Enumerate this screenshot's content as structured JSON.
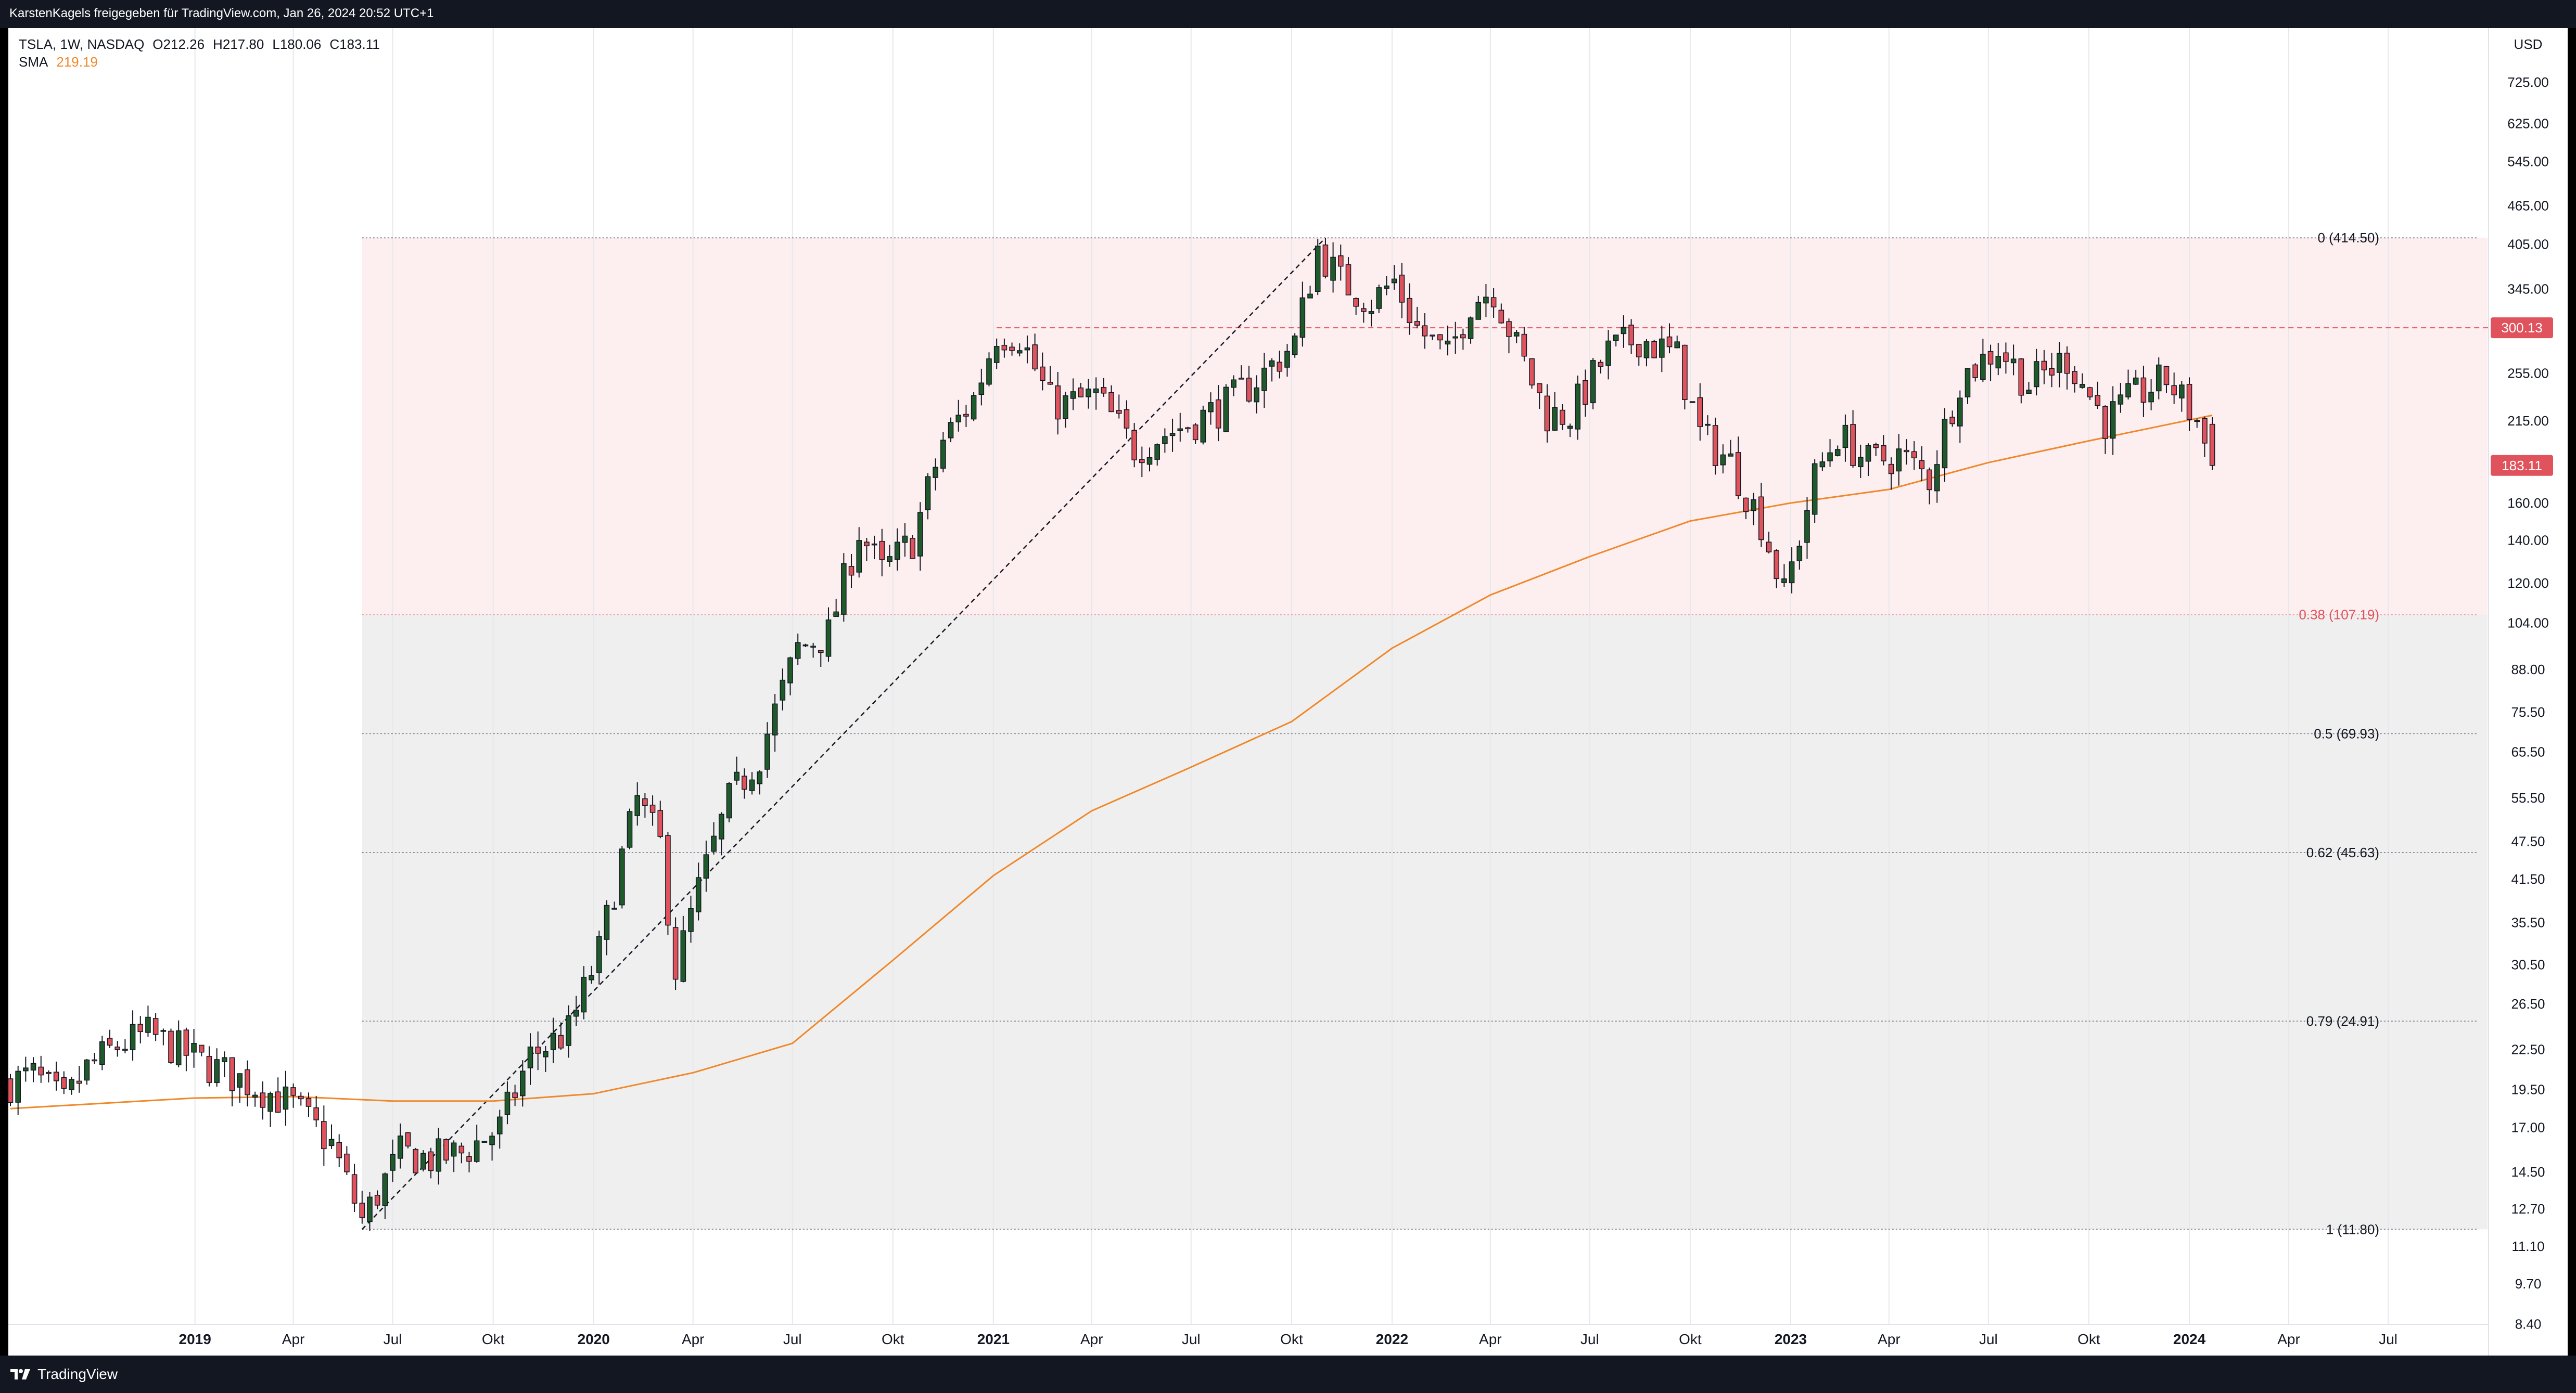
{
  "attribution": "KarstenKagels freigegeben für TradingView.com, Jan 26, 2024 20:52 UTC+1",
  "legend": {
    "symbol": "TSLA, 1W, NASDAQ",
    "open": "O212.26",
    "high": "H217.80",
    "low": "L180.06",
    "close": "C183.11",
    "indicator": "SMA",
    "indicator_value": "219.19"
  },
  "brand": "TradingView",
  "colors": {
    "up": "#1e5a2a",
    "down": "#e0525c",
    "sma": "#f0882a",
    "fib_upper_zone": "#fdeef0",
    "fib_lower_zone": "#efefef",
    "dashed_level": "#e0525c"
  },
  "chart_data": {
    "type": "candlestick",
    "symbol": "TSLA",
    "interval": "1W",
    "exchange": "NASDAQ",
    "currency": "USD",
    "y_scale": "log",
    "ylim": [
      7.5,
      880
    ],
    "xlim": [
      "2018-07-16",
      "2024-09-30"
    ],
    "y_ticks": [
      725,
      625,
      545,
      465,
      405,
      345,
      300,
      255,
      215,
      160,
      140,
      120,
      104,
      88,
      75.5,
      65.5,
      55.5,
      47.5,
      41.5,
      35.5,
      30.5,
      26.5,
      22.5,
      19.5,
      17,
      14.5,
      12.7,
      11.1,
      9.7,
      8.4
    ],
    "y_tick_labels": [
      "725.00",
      "625.00",
      "545.00",
      "465.00",
      "405.00",
      "345.00",
      "300.00",
      "255.00",
      "215.00",
      "160.00",
      "140.00",
      "120.00",
      "104.00",
      "88.00",
      "75.50",
      "65.50",
      "55.50",
      "47.50",
      "41.50",
      "35.50",
      "30.50",
      "26.50",
      "22.50",
      "19.50",
      "17.00",
      "14.50",
      "12.70",
      "11.10",
      "9.70",
      "8.40"
    ],
    "x_ticks": [
      {
        "date": "2019-01-01",
        "label": "2019",
        "bold": true
      },
      {
        "date": "2019-04-01",
        "label": "Apr",
        "bold": false
      },
      {
        "date": "2019-07-01",
        "label": "Jul",
        "bold": false
      },
      {
        "date": "2019-10-01",
        "label": "Okt",
        "bold": false
      },
      {
        "date": "2020-01-01",
        "label": "2020",
        "bold": true
      },
      {
        "date": "2020-04-01",
        "label": "Apr",
        "bold": false
      },
      {
        "date": "2020-07-01",
        "label": "Jul",
        "bold": false
      },
      {
        "date": "2020-10-01",
        "label": "Okt",
        "bold": false
      },
      {
        "date": "2021-01-01",
        "label": "2021",
        "bold": true
      },
      {
        "date": "2021-04-01",
        "label": "Apr",
        "bold": false
      },
      {
        "date": "2021-07-01",
        "label": "Jul",
        "bold": false
      },
      {
        "date": "2021-10-01",
        "label": "Okt",
        "bold": false
      },
      {
        "date": "2022-01-01",
        "label": "2022",
        "bold": true
      },
      {
        "date": "2022-04-01",
        "label": "Apr",
        "bold": false
      },
      {
        "date": "2022-07-01",
        "label": "Jul",
        "bold": false
      },
      {
        "date": "2022-10-01",
        "label": "Okt",
        "bold": false
      },
      {
        "date": "2023-01-01",
        "label": "2023",
        "bold": true
      },
      {
        "date": "2023-04-01",
        "label": "Apr",
        "bold": false
      },
      {
        "date": "2023-07-01",
        "label": "Jul",
        "bold": false
      },
      {
        "date": "2023-10-01",
        "label": "Okt",
        "bold": false
      },
      {
        "date": "2024-01-01",
        "label": "2024",
        "bold": true
      },
      {
        "date": "2024-04-01",
        "label": "Apr",
        "bold": false
      },
      {
        "date": "2024-07-01",
        "label": "Jul",
        "bold": false
      }
    ],
    "ohlc_anchors": [
      {
        "date": "2018-07-16",
        "close": 20.0
      },
      {
        "date": "2018-08-06",
        "close": 20.5
      },
      {
        "date": "2018-09-03",
        "close": 18.5
      },
      {
        "date": "2018-09-24",
        "close": 21.0
      },
      {
        "date": "2018-10-22",
        "close": 22.8
      },
      {
        "date": "2018-11-19",
        "close": 23.8
      },
      {
        "date": "2018-12-17",
        "close": 22.5
      },
      {
        "date": "2019-01-07",
        "close": 21.5
      },
      {
        "date": "2019-02-04",
        "close": 20.5
      },
      {
        "date": "2019-03-04",
        "close": 19.5
      },
      {
        "date": "2019-04-01",
        "close": 18.4
      },
      {
        "date": "2019-05-06",
        "close": 16.0
      },
      {
        "date": "2019-06-03",
        "close": 12.2
      },
      {
        "date": "2019-07-08",
        "close": 15.5
      },
      {
        "date": "2019-08-05",
        "close": 15.2
      },
      {
        "date": "2019-09-02",
        "close": 15.5
      },
      {
        "date": "2019-10-07",
        "close": 17.0
      },
      {
        "date": "2019-11-04",
        "close": 22.0
      },
      {
        "date": "2019-12-09",
        "close": 24.0
      },
      {
        "date": "2020-01-06",
        "close": 32.0
      },
      {
        "date": "2020-01-27",
        "close": 45.0
      },
      {
        "date": "2020-02-10",
        "close": 55.0
      },
      {
        "date": "2020-03-02",
        "close": 47.0
      },
      {
        "date": "2020-03-16",
        "close": 30.0
      },
      {
        "date": "2020-04-06",
        "close": 40.0
      },
      {
        "date": "2020-05-04",
        "close": 55.0
      },
      {
        "date": "2020-06-01",
        "close": 65.0
      },
      {
        "date": "2020-07-06",
        "close": 95.0
      },
      {
        "date": "2020-08-03",
        "close": 100.0
      },
      {
        "date": "2020-08-31",
        "close": 145.0
      },
      {
        "date": "2020-09-21",
        "close": 125.0
      },
      {
        "date": "2020-10-19",
        "close": 140.0
      },
      {
        "date": "2020-11-16",
        "close": 200.0
      },
      {
        "date": "2020-12-14",
        "close": 233.0
      },
      {
        "date": "2021-01-04",
        "close": 295.0
      },
      {
        "date": "2021-01-25",
        "close": 292.0
      },
      {
        "date": "2021-02-22",
        "close": 230.0
      },
      {
        "date": "2021-03-08",
        "close": 228.0
      },
      {
        "date": "2021-04-05",
        "close": 235.0
      },
      {
        "date": "2021-05-10",
        "close": 195.0
      },
      {
        "date": "2021-06-07",
        "close": 205.0
      },
      {
        "date": "2021-07-05",
        "close": 215.0
      },
      {
        "date": "2021-08-02",
        "close": 228.0
      },
      {
        "date": "2021-09-06",
        "close": 255.0
      },
      {
        "date": "2021-10-04",
        "close": 285.0
      },
      {
        "date": "2021-10-25",
        "close": 400.0
      },
      {
        "date": "2021-11-15",
        "close": 355.0
      },
      {
        "date": "2021-12-13",
        "close": 330.0
      },
      {
        "date": "2022-01-03",
        "close": 355.0
      },
      {
        "date": "2022-01-24",
        "close": 300.0
      },
      {
        "date": "2022-02-21",
        "close": 270.0
      },
      {
        "date": "2022-03-14",
        "close": 330.0
      },
      {
        "date": "2022-04-04",
        "close": 345.0
      },
      {
        "date": "2022-04-25",
        "close": 280.0
      },
      {
        "date": "2022-05-23",
        "close": 220.0
      },
      {
        "date": "2022-06-13",
        "close": 220.0
      },
      {
        "date": "2022-07-18",
        "close": 275.0
      },
      {
        "date": "2022-08-15",
        "close": 290.0
      },
      {
        "date": "2022-09-19",
        "close": 270.0
      },
      {
        "date": "2022-10-10",
        "close": 205.0
      },
      {
        "date": "2022-11-07",
        "close": 185.0
      },
      {
        "date": "2022-12-05",
        "close": 150.0
      },
      {
        "date": "2022-12-26",
        "close": 115.0
      },
      {
        "date": "2023-01-23",
        "close": 175.0
      },
      {
        "date": "2023-02-13",
        "close": 205.0
      },
      {
        "date": "2023-03-13",
        "close": 185.0
      },
      {
        "date": "2023-04-10",
        "close": 190.0
      },
      {
        "date": "2023-05-08",
        "close": 175.0
      },
      {
        "date": "2023-06-05",
        "close": 250.0
      },
      {
        "date": "2023-07-10",
        "close": 280.0
      },
      {
        "date": "2023-08-07",
        "close": 245.0
      },
      {
        "date": "2023-09-11",
        "close": 270.0
      },
      {
        "date": "2023-10-16",
        "close": 215.0
      },
      {
        "date": "2023-11-13",
        "close": 235.0
      },
      {
        "date": "2023-12-11",
        "close": 250.0
      },
      {
        "date": "2024-01-08",
        "close": 215.0
      },
      {
        "date": "2024-01-22",
        "close": 183.11
      }
    ],
    "last_bar": {
      "date": "2024-01-22",
      "open": 212.26,
      "high": 217.8,
      "low": 180.06,
      "close": 183.11
    },
    "sma": {
      "name": "SMA",
      "value": 219.19,
      "anchors": [
        {
          "date": "2018-07-16",
          "value": 18.2
        },
        {
          "date": "2018-12-31",
          "value": 18.9
        },
        {
          "date": "2019-04-01",
          "value": 19.0
        },
        {
          "date": "2019-07-01",
          "value": 18.7
        },
        {
          "date": "2019-10-01",
          "value": 18.7
        },
        {
          "date": "2020-01-01",
          "value": 19.2
        },
        {
          "date": "2020-04-01",
          "value": 20.7
        },
        {
          "date": "2020-07-01",
          "value": 23.0
        },
        {
          "date": "2020-10-01",
          "value": 31.0
        },
        {
          "date": "2021-01-01",
          "value": 42.0
        },
        {
          "date": "2021-04-01",
          "value": 53.0
        },
        {
          "date": "2021-07-01",
          "value": 62.0
        },
        {
          "date": "2021-10-01",
          "value": 73.0
        },
        {
          "date": "2022-01-01",
          "value": 95.0
        },
        {
          "date": "2022-04-01",
          "value": 115.0
        },
        {
          "date": "2022-07-01",
          "value": 132.0
        },
        {
          "date": "2022-10-01",
          "value": 150.0
        },
        {
          "date": "2023-01-01",
          "value": 160.0
        },
        {
          "date": "2023-04-01",
          "value": 168.0
        },
        {
          "date": "2023-07-01",
          "value": 185.0
        },
        {
          "date": "2023-10-01",
          "value": 200.0
        },
        {
          "date": "2024-01-22",
          "value": 219.19
        }
      ]
    },
    "fibonacci": {
      "start_date": "2019-06-03",
      "end_date": "2024-09-30",
      "levels": [
        {
          "ratio": "0",
          "price": 414.5,
          "label": "0 (414.50)"
        },
        {
          "ratio": "0.38",
          "price": 107.19,
          "label": "0.38 (107.19)"
        },
        {
          "ratio": "0.5",
          "price": 69.93,
          "label": "0.5 (69.93)"
        },
        {
          "ratio": "0.62",
          "price": 45.63,
          "label": "0.62 (45.63)"
        },
        {
          "ratio": "0.79",
          "price": 24.91,
          "label": "0.79 (24.91)"
        },
        {
          "ratio": "1",
          "price": 11.8,
          "label": "1 (11.80)"
        }
      ]
    },
    "trend_line": {
      "from": {
        "date": "2019-06-03",
        "price": 11.8
      },
      "to": {
        "date": "2021-11-01",
        "price": 414.5
      }
    },
    "horizontal_line": {
      "price": 300.13,
      "from_date": "2021-01-04",
      "label": "300.13"
    },
    "price_labels": [
      {
        "price": 300.13,
        "label": "300.13"
      },
      {
        "price": 183.11,
        "label": "183.11"
      }
    ],
    "currency_label": "USD"
  }
}
